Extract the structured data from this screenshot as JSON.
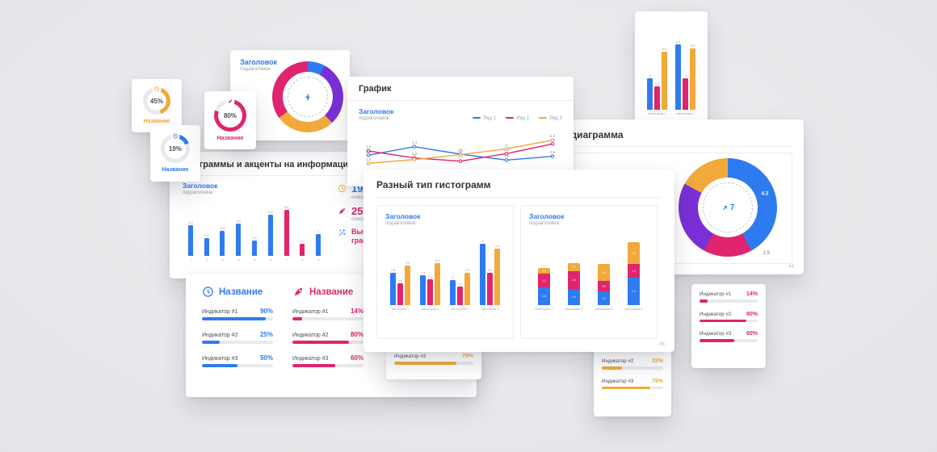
{
  "palette": {
    "blue": "#2e7bf0",
    "pink": "#e0246e",
    "orange": "#f2a93b",
    "purple": "#7b2fd6",
    "dark": "#333333",
    "muted": "#9aa0a6",
    "track": "#e9e9ed",
    "card": "#ffffff",
    "background": "#e6e6e9"
  },
  "chart_data": [
    {
      "type": "gauge",
      "title": "Название",
      "value": 45,
      "value_label": "45%",
      "color_key": "orange"
    },
    {
      "type": "gauge",
      "title": "Название",
      "value": 19,
      "value_label": "19%",
      "color_key": "blue"
    },
    {
      "type": "gauge",
      "title": "Название",
      "value": 80,
      "value_label": "80%",
      "color_key": "pink"
    },
    {
      "type": "donut",
      "title": "Заголовок",
      "segments": [
        {
          "value": 0.8,
          "color_key": "blue"
        },
        {
          "value": 3.0,
          "color_key": "purple"
        },
        {
          "value": 2.7,
          "color_key": "orange"
        },
        {
          "value": 3.5,
          "color_key": "pink"
        }
      ]
    },
    {
      "type": "line",
      "title": "График",
      "x": [
        1,
        2,
        3,
        4,
        5
      ],
      "ymax": 6,
      "series": [
        {
          "name": "Ряд 1",
          "color_key": "blue",
          "values": [
            2.8,
            4.4,
            3.0,
            1.9,
            2.6
          ]
        },
        {
          "name": "Ряд 2",
          "color_key": "pink",
          "values": [
            3.6,
            2.3,
            1.7,
            3.1,
            4.9
          ]
        },
        {
          "name": "Ряд 3",
          "color_key": "orange",
          "values": [
            1.3,
            2.0,
            2.9,
            4.0,
            5.6
          ]
        }
      ]
    },
    {
      "type": "bar",
      "categories": [
        "Категория 1",
        "Категория 2"
      ],
      "ymax": 7,
      "show_values": true,
      "series": [
        {
          "name": "Ряд 1",
          "color_key": "blue",
          "values": [
            3,
            6.2
          ]
        },
        {
          "name": "Ряд 2",
          "color_key": "pink",
          "values": [
            2.2,
            3
          ]
        },
        {
          "name": "Ряд 3",
          "color_key": "orange",
          "values": [
            5.5,
            5.8
          ]
        }
      ]
    },
    {
      "type": "donut",
      "title": "Круговая диаграмма",
      "segments": [
        {
          "value": 4.2,
          "color_key": "blue"
        },
        {
          "value": 1.6,
          "color_key": "pink"
        },
        {
          "value": 2.5,
          "color_key": "purple"
        },
        {
          "value": 1.7,
          "color_key": "orange"
        }
      ],
      "labels": [
        {
          "text": "4.2",
          "angle": 70,
          "inside": true
        },
        {
          "text": "2.5",
          "angle": 140,
          "inside": false
        }
      ],
      "center_value": "7"
    },
    {
      "type": "bar",
      "categories": [
        "1",
        "2",
        "3",
        "4",
        "5",
        "6",
        "7",
        "8",
        "9"
      ],
      "ymax": 7,
      "show_values": true,
      "values": [
        4.3,
        2.5,
        3.5,
        4.5,
        2.2,
        5.8,
        6.4,
        1.7,
        3
      ],
      "colors": [
        "blue",
        "blue",
        "blue",
        "blue",
        "blue",
        "blue",
        "pink",
        "pink",
        "blue"
      ]
    },
    {
      "type": "bar",
      "categories": [
        "Категория 1",
        "Категория 2",
        "Категория 3",
        "Категория 4"
      ],
      "ymax": 5.5,
      "show_values": true,
      "series": [
        {
          "name": "Ряд 1",
          "color_key": "blue",
          "values": [
            2.6,
            2.4,
            2.0,
            5.0
          ]
        },
        {
          "name": "Ряд 2",
          "color_key": "pink",
          "values": [
            1.8,
            2.1,
            1.5,
            2.6
          ]
        },
        {
          "name": "Ряд 3",
          "color_key": "orange",
          "values": [
            3.2,
            3.4,
            2.6,
            4.6
          ]
        }
      ]
    },
    {
      "type": "stacked-bar",
      "categories": [
        "Категория 1",
        "Категория 2",
        "Категория 3",
        "Категория 4"
      ],
      "ymax": 6,
      "series": [
        {
          "name": "Ряд 1",
          "color_key": "blue",
          "values": [
            1.6,
            1.4,
            1.2,
            2.4
          ]
        },
        {
          "name": "Ряд 2",
          "color_key": "pink",
          "values": [
            1.2,
            1.6,
            0.9,
            1.2
          ]
        },
        {
          "name": "Ряд 3",
          "color_key": "orange",
          "values": [
            0.5,
            0.7,
            1.5,
            1.9
          ]
        }
      ]
    }
  ],
  "cards": {
    "gauge45": {
      "value_label": "45%",
      "title": "Название"
    },
    "gauge19": {
      "value_label": "19%",
      "title": "Название"
    },
    "gauge80": {
      "value_label": "80%",
      "title": "Название"
    },
    "donut_small": {
      "heading": "Заголовок",
      "subheading": "подзаголовок"
    },
    "grafik": {
      "window_title": "График",
      "heading": "Заголовок",
      "subheading": "подзаголовок",
      "legend": [
        {
          "label": "Ряд 1",
          "color_key": "blue"
        },
        {
          "label": "Ряд 2",
          "color_key": "pink"
        },
        {
          "label": "Ряд 3",
          "color_key": "orange"
        }
      ]
    },
    "pie_big": {
      "title": "Круговая диаграмма",
      "heading": "Заголовок",
      "subheading": "подзаголовок",
      "center_value": "7",
      "page_number": "44"
    },
    "accents": {
      "title": "Диаграммы и акценты на информацию",
      "heading": "Заголовок",
      "subheading": "подзаголовок",
      "stats": [
        {
          "value": "19 2",
          "desc": "описание показателя"
        },
        {
          "value": "25%",
          "desc": "описание показателя"
        },
        {
          "value": "Вывод из графиков",
          "desc": ""
        }
      ]
    },
    "histograms": {
      "title": "Разный тип гистограмм",
      "page_number": "45",
      "panels": [
        {
          "heading": "Заголовок",
          "subheading": "подзаголовок"
        },
        {
          "heading": "Заголовок",
          "subheading": "подзаголовок"
        }
      ]
    },
    "indicators_duo": {
      "columns": [
        {
          "title": "Название",
          "color_key": "blue",
          "rows": [
            {
              "label": "Индикатор #1",
              "value": 90,
              "value_label": "90%"
            },
            {
              "label": "Индикатор #2",
              "value": 25,
              "value_label": "25%"
            },
            {
              "label": "Индикатор #3",
              "value": 50,
              "value_label": "50%"
            }
          ]
        },
        {
          "title": "Название",
          "color_key": "pink",
          "rows": [
            {
              "label": "Индикатор #1",
              "value": 14,
              "value_label": "14%"
            },
            {
              "label": "Индикатор #2",
              "value": 80,
              "value_label": "80%"
            },
            {
              "label": "Индикатор #3",
              "value": 60,
              "value_label": "60%"
            }
          ]
        }
      ]
    },
    "indicator_strip": {
      "color_key": "orange",
      "rows": [
        {
          "label": "Индикатор #3",
          "value": 79,
          "value_label": "79%"
        }
      ]
    },
    "indicators_orange": {
      "color_key": "orange",
      "rows": [
        {
          "label": "Индикатор #2",
          "value": 33,
          "value_label": "33%"
        },
        {
          "label": "Индикатор #3",
          "value": 79,
          "value_label": "79%"
        }
      ]
    },
    "indicators_pink": {
      "color_key": "pink",
      "rows": [
        {
          "label": "Индикатор #1",
          "value": 14,
          "value_label": "14%"
        },
        {
          "label": "Индикатор #2",
          "value": 80,
          "value_label": "80%"
        },
        {
          "label": "Индикатор #3",
          "value": 60,
          "value_label": "60%"
        }
      ]
    }
  }
}
